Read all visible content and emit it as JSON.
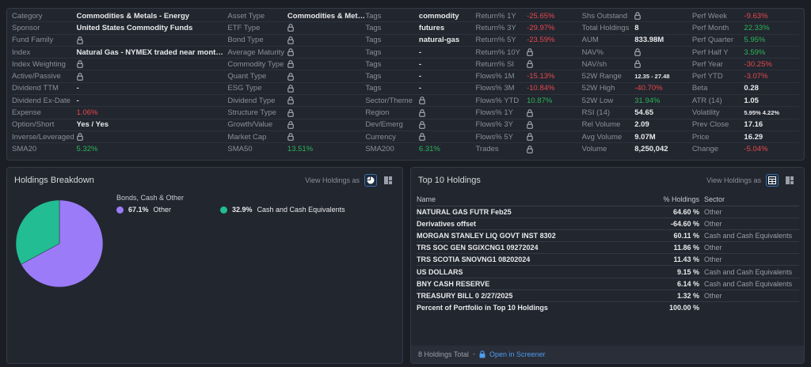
{
  "snapshot": {
    "rows": [
      [
        {
          "l": "Category",
          "v": "Commodities & Metals - Energy"
        },
        {
          "l": "Asset Type",
          "v": "Commodities & Metals"
        },
        {
          "l": "Tags",
          "v": "commodity"
        },
        {
          "l": "Return% 1Y",
          "v": "-25.65%",
          "c": "red"
        },
        {
          "l": "Shs Outstand",
          "lock": true
        },
        {
          "l": "Perf Week",
          "v": "-9.63%",
          "c": "red"
        }
      ],
      [
        {
          "l": "Sponsor",
          "v": "United States Commodity Funds"
        },
        {
          "l": "ETF Type",
          "lock": true
        },
        {
          "l": "Tags",
          "v": "futures"
        },
        {
          "l": "Return% 3Y",
          "v": "-29.97%",
          "c": "red"
        },
        {
          "l": "Total Holdings",
          "v": "8"
        },
        {
          "l": "Perf Month",
          "v": "22.33%",
          "c": "green"
        }
      ],
      [
        {
          "l": "Fund Family",
          "lock": true
        },
        {
          "l": "Bond Type",
          "lock": true
        },
        {
          "l": "Tags",
          "v": "natural-gas"
        },
        {
          "l": "Return% 5Y",
          "v": "-23.59%",
          "c": "red"
        },
        {
          "l": "AUM",
          "v": "833.98M"
        },
        {
          "l": "Perf Quarter",
          "v": "5.95%",
          "c": "green"
        }
      ],
      [
        {
          "l": "Index",
          "v": "Natural Gas - NYMEX traded near month fu..."
        },
        {
          "l": "Average Maturity",
          "lock": true
        },
        {
          "l": "Tags",
          "v": "-"
        },
        {
          "l": "Return% 10Y",
          "lock": true
        },
        {
          "l": "NAV%",
          "lock": true
        },
        {
          "l": "Perf Half Y",
          "v": "3.59%",
          "c": "green"
        }
      ],
      [
        {
          "l": "Index Weighting",
          "lock": true
        },
        {
          "l": "Commodity Type",
          "lock": true
        },
        {
          "l": "Tags",
          "v": "-"
        },
        {
          "l": "Return% SI",
          "lock": true
        },
        {
          "l": "NAV/sh",
          "lock": true
        },
        {
          "l": "Perf Year",
          "v": "-30.25%",
          "c": "red"
        }
      ],
      [
        {
          "l": "Active/Passive",
          "lock": true
        },
        {
          "l": "Quant Type",
          "lock": true
        },
        {
          "l": "Tags",
          "v": "-"
        },
        {
          "l": "Flows% 1M",
          "v": "-15.13%",
          "c": "red"
        },
        {
          "l": "52W Range",
          "v": "12.35 - 27.48",
          "c": "small"
        },
        {
          "l": "Perf YTD",
          "v": "-3.07%",
          "c": "red"
        }
      ],
      [
        {
          "l": "Dividend TTM",
          "v": "-"
        },
        {
          "l": "ESG Type",
          "lock": true
        },
        {
          "l": "Tags",
          "v": "-"
        },
        {
          "l": "Flows% 3M",
          "v": "-10.84%",
          "c": "red"
        },
        {
          "l": "52W High",
          "v": "-40.70%",
          "c": "red"
        },
        {
          "l": "Beta",
          "v": "0.28"
        }
      ],
      [
        {
          "l": "Dividend Ex-Date",
          "v": "-"
        },
        {
          "l": "Dividend Type",
          "lock": true
        },
        {
          "l": "Sector/Theme",
          "lock": true
        },
        {
          "l": "Flows% YTD",
          "v": "10.87%",
          "c": "green"
        },
        {
          "l": "52W Low",
          "v": "31.94%",
          "c": "green"
        },
        {
          "l": "ATR (14)",
          "v": "1.05"
        }
      ],
      [
        {
          "l": "Expense",
          "v": "1.06%",
          "c": "red"
        },
        {
          "l": "Structure Type",
          "lock": true
        },
        {
          "l": "Region",
          "lock": true
        },
        {
          "l": "Flows% 1Y",
          "lock": true
        },
        {
          "l": "RSI (14)",
          "v": "54.65"
        },
        {
          "l": "Volatility",
          "v": "5.95% 4.22%",
          "c": "small"
        }
      ],
      [
        {
          "l": "Option/Short",
          "v": "Yes / Yes"
        },
        {
          "l": "Growth/Value",
          "lock": true
        },
        {
          "l": "Dev/Emerg",
          "lock": true
        },
        {
          "l": "Flows% 3Y",
          "lock": true
        },
        {
          "l": "Rel Volume",
          "v": "2.09"
        },
        {
          "l": "Prev Close",
          "v": "17.16"
        }
      ],
      [
        {
          "l": "Inverse/Leveraged",
          "lock": true
        },
        {
          "l": "Market Cap",
          "lock": true
        },
        {
          "l": "Currency",
          "lock": true
        },
        {
          "l": "Flows% 5Y",
          "lock": true
        },
        {
          "l": "Avg Volume",
          "v": "9.07M"
        },
        {
          "l": "Price",
          "v": "16.29"
        }
      ],
      [
        {
          "l": "SMA20",
          "v": "5.32%",
          "c": "green"
        },
        {
          "l": "SMA50",
          "v": "13.51%",
          "c": "green"
        },
        {
          "l": "SMA200",
          "v": "6.31%",
          "c": "green"
        },
        {
          "l": "Trades",
          "lock": true
        },
        {
          "l": "Volume",
          "v": "8,250,042"
        },
        {
          "l": "Change",
          "v": "-5.04%",
          "c": "red"
        }
      ]
    ]
  },
  "breakdown": {
    "title": "Holdings Breakdown",
    "view_as": "View Holdings as",
    "legend_title": "Bonds, Cash & Other"
  },
  "chart_data": {
    "type": "pie",
    "title": "Bonds, Cash & Other",
    "slices": [
      {
        "label": "Other",
        "pct_label": "67.1%",
        "value": 67.1,
        "color": "#9b7bf7"
      },
      {
        "label": "Cash and Cash Equivalents",
        "pct_label": "32.9%",
        "value": 32.9,
        "color": "#22bd92"
      }
    ]
  },
  "top10": {
    "title": "Top 10 Holdings",
    "view_as": "View Holdings as",
    "headers": {
      "name": "Name",
      "pct": "% Holdings",
      "sector": "Sector"
    },
    "rows": [
      {
        "name": "NATURAL GAS FUTR Feb25",
        "pct": "64.60 %",
        "sector": "Other"
      },
      {
        "name": "Derivatives offset",
        "pct": "-64.60 %",
        "sector": "Other"
      },
      {
        "name": "MORGAN STANLEY LIQ GOVT INST 8302",
        "pct": "60.11 %",
        "sector": "Cash and Cash Equivalents"
      },
      {
        "name": "TRS SOC GEN SGIXCNG1 09272024",
        "pct": "11.86 %",
        "sector": "Other"
      },
      {
        "name": "TRS SCOTIA SNOVNG1 08202024",
        "pct": "11.43 %",
        "sector": "Other"
      },
      {
        "name": "US DOLLARS",
        "pct": "9.15 %",
        "sector": "Cash and Cash Equivalents"
      },
      {
        "name": "BNY CASH RESERVE",
        "pct": "6.14 %",
        "sector": "Cash and Cash Equivalents"
      },
      {
        "name": "TREASURY BILL 0 2/27/2025",
        "pct": "1.32 %",
        "sector": "Other"
      }
    ],
    "total_row": {
      "name": "Percent of Portfolio in Top 10 Holdings",
      "pct": "100.00 %"
    },
    "footer": {
      "total": "8 Holdings Total",
      "sep": "•",
      "link": "Open in Screener"
    }
  }
}
